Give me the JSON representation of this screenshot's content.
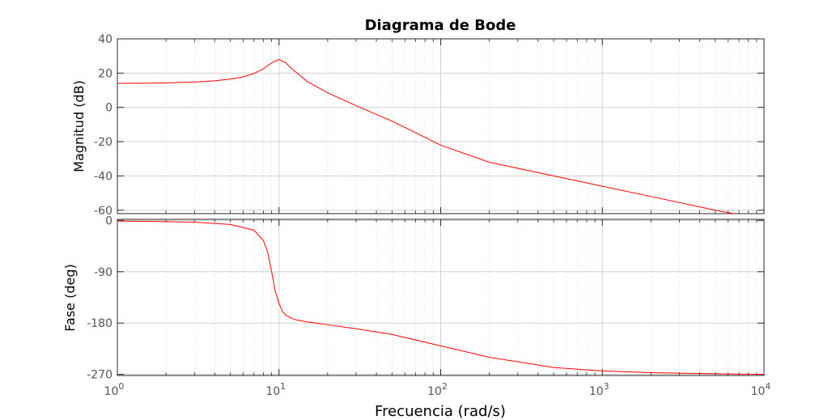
{
  "chart_data": {
    "type": "line",
    "title": "Diagrama de Bode",
    "xlabel": "Frecuencia  (rad/s)",
    "x_scale": "log",
    "xlim": [
      1,
      10000
    ],
    "x_ticks": [
      {
        "value": 1,
        "base": "10",
        "exp": "0"
      },
      {
        "value": 10,
        "base": "10",
        "exp": "1"
      },
      {
        "value": 100,
        "base": "10",
        "exp": "2"
      },
      {
        "value": 1000,
        "base": "10",
        "exp": "3"
      },
      {
        "value": 10000,
        "base": "10",
        "exp": "4"
      }
    ],
    "grid": true,
    "line_color": "#ff0000",
    "subplots": [
      {
        "ylabel": "Magnitud (dB)",
        "ylim": [
          -62,
          40
        ],
        "yticks": [
          40,
          20,
          0,
          -20,
          -40,
          -60
        ],
        "series": [
          {
            "x": [
              1,
              1.5,
              2,
              3,
              4,
              5,
              6,
              7,
              8,
              9,
              10,
              11,
              12,
              15,
              20,
              30,
              50,
              100,
              200,
              500,
              1000,
              2000,
              5000,
              6500
            ],
            "y": [
              14,
              14.1,
              14.3,
              14.8,
              15.5,
              16.5,
              17.8,
              19.8,
              22.5,
              26,
              28,
              26,
              22.5,
              15,
              8.5,
              1,
              -8,
              -22,
              -32,
              -40,
              -46,
              -52,
              -60,
              -62
            ]
          }
        ]
      },
      {
        "ylabel": "Fase (deg)",
        "ylim": [
          -272,
          2
        ],
        "yticks": [
          0,
          -90,
          -180,
          -270
        ],
        "series": [
          {
            "x": [
              1,
              2,
              3,
              5,
              7,
              8,
              8.5,
              9,
              9.5,
              10,
              10.5,
              11,
              12,
              13,
              15,
              20,
              30,
              50,
              100,
              200,
              500,
              1000,
              2000,
              5000,
              10000
            ],
            "y": [
              -1,
              -2,
              -3,
              -7,
              -17,
              -35,
              -55,
              -90,
              -125,
              -145,
              -160,
              -166,
              -172,
              -175,
              -178,
              -183,
              -190,
              -200,
              -220,
              -240,
              -258,
              -264,
              -267,
              -269,
              -270
            ]
          }
        ]
      }
    ]
  }
}
